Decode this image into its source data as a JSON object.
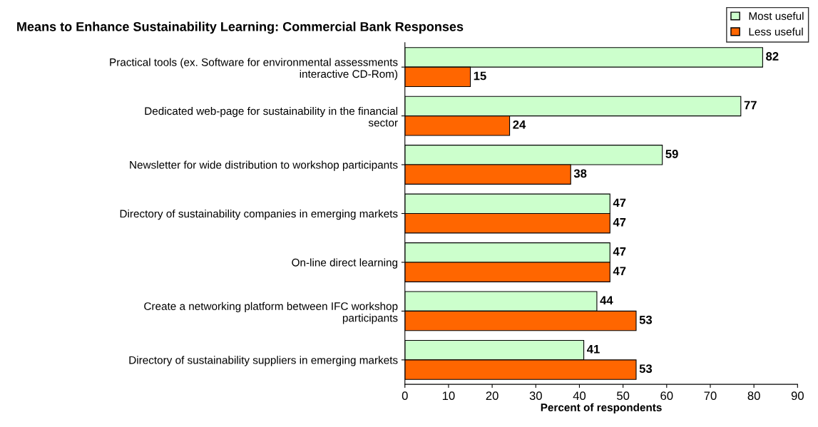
{
  "chart_data": {
    "type": "bar",
    "orientation": "horizontal",
    "title": "Means to Enhance Sustainability Learning: Commercial Bank Responses",
    "xlabel": "Percent of respondents",
    "categories": [
      "Practical tools (ex. Software for environmental assessments interactive CD-Rom)",
      "Dedicated web-page for sustainability in the financial sector",
      "Newsletter for wide distribution to workshop participants",
      "Directory of sustainability companies in emerging markets",
      "On-line direct learning",
      "Create a networking platform between IFC workshop participants",
      "Directory of sustainability suppliers in emerging markets"
    ],
    "series": [
      {
        "name": "Most useful",
        "color": "#ccffcc",
        "values": [
          82,
          77,
          59,
          47,
          47,
          44,
          41
        ]
      },
      {
        "name": "Less useful",
        "color": "#ff6600",
        "values": [
          15,
          24,
          38,
          47,
          47,
          53,
          53
        ]
      }
    ],
    "xlim": [
      0,
      90
    ],
    "xticks": [
      0,
      10,
      20,
      30,
      40,
      50,
      60,
      70,
      80,
      90
    ],
    "data_labels": true,
    "legend": "top right",
    "grid": false
  }
}
